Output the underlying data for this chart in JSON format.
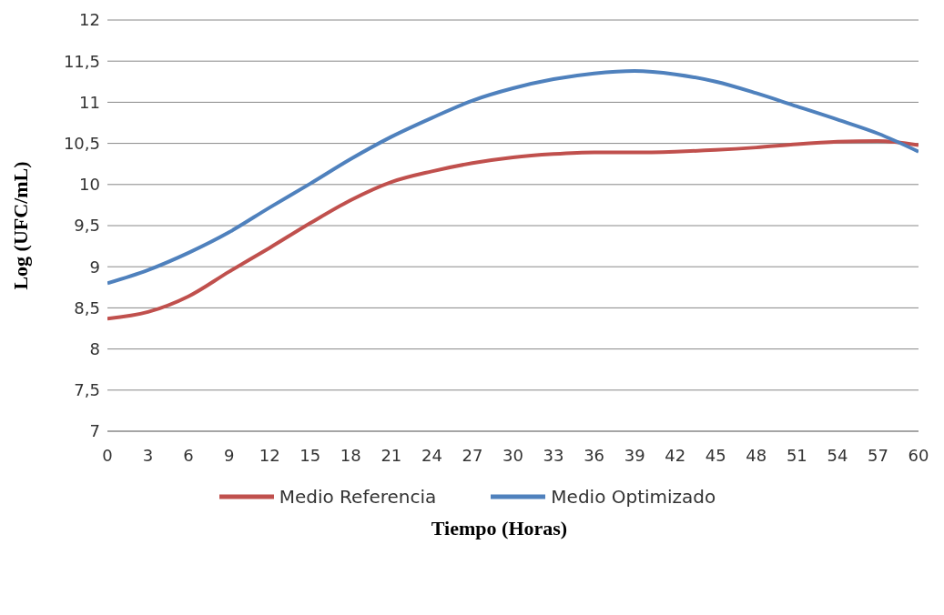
{
  "chart_data": {
    "type": "line",
    "xlabel": "Tiempo (Horas)",
    "ylabel": "Log (UFC/mL)",
    "x": [
      0,
      3,
      6,
      9,
      12,
      15,
      18,
      21,
      24,
      27,
      30,
      33,
      36,
      39,
      42,
      45,
      48,
      51,
      54,
      57,
      60
    ],
    "series": [
      {
        "name": "Medio Referencia",
        "color": "#c0504d",
        "values": [
          8.37,
          8.45,
          8.64,
          8.94,
          9.23,
          9.53,
          9.81,
          10.03,
          10.16,
          10.26,
          10.33,
          10.37,
          10.39,
          10.39,
          10.4,
          10.42,
          10.45,
          10.49,
          10.52,
          10.53,
          10.48
        ]
      },
      {
        "name": "Medio Optimizado",
        "color": "#4f81bd",
        "values": [
          8.8,
          8.96,
          9.17,
          9.42,
          9.72,
          10.01,
          10.31,
          10.58,
          10.81,
          11.02,
          11.17,
          11.28,
          11.35,
          11.38,
          11.34,
          11.25,
          11.11,
          10.95,
          10.79,
          10.62,
          10.4
        ]
      }
    ],
    "xlim": [
      0,
      60
    ],
    "xticks": [
      0,
      3,
      6,
      9,
      12,
      15,
      18,
      21,
      24,
      27,
      30,
      33,
      36,
      39,
      42,
      45,
      48,
      51,
      54,
      57,
      60
    ],
    "ylim": [
      7,
      12
    ],
    "yticks": [
      7,
      {
        "value": 7.5,
        "label": "7,5"
      },
      8,
      {
        "value": 8.5,
        "label": "8,5"
      },
      9,
      {
        "value": 9.5,
        "label": "9,5"
      },
      10,
      {
        "value": 10.5,
        "label": "10,5"
      },
      11,
      {
        "value": 11.5,
        "label": "11,5"
      },
      12
    ],
    "grid": "y",
    "legend": "bottom",
    "marker": "none",
    "line_style": "solid"
  }
}
